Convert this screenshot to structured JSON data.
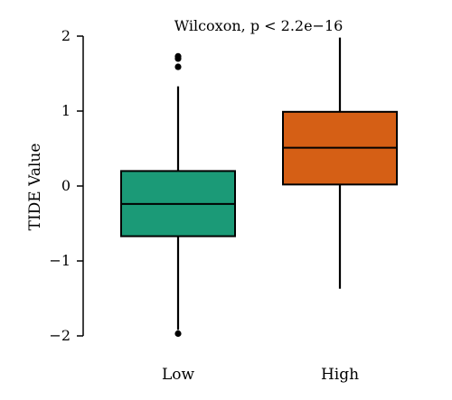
{
  "chart_data": {
    "type": "box",
    "title": "Wilcoxon, p < 2.2e−16",
    "xlabel": "",
    "ylabel": "TIDE Value",
    "ylim": [
      -2.1,
      2.1
    ],
    "yticks": [
      {
        "value": -2,
        "label": "−2"
      },
      {
        "value": -1,
        "label": "−1"
      },
      {
        "value": 0,
        "label": "0"
      },
      {
        "value": 1,
        "label": "1"
      },
      {
        "value": 2,
        "label": "2"
      }
    ],
    "grid": false,
    "legend": "none",
    "categories": [
      "Low",
      "High"
    ],
    "series": [
      {
        "category": "Low",
        "color": "#1b9a77",
        "whisker_low": -1.92,
        "q1": -0.67,
        "median": -0.24,
        "q3": 0.2,
        "whisker_high": 1.33,
        "outliers": [
          1.73,
          1.7,
          1.59,
          -1.97
        ]
      },
      {
        "category": "High",
        "color": "#d55f15",
        "whisker_low": -1.37,
        "q1": 0.02,
        "median": 0.51,
        "q3": 0.99,
        "whisker_high": 1.98,
        "outliers": []
      }
    ]
  }
}
